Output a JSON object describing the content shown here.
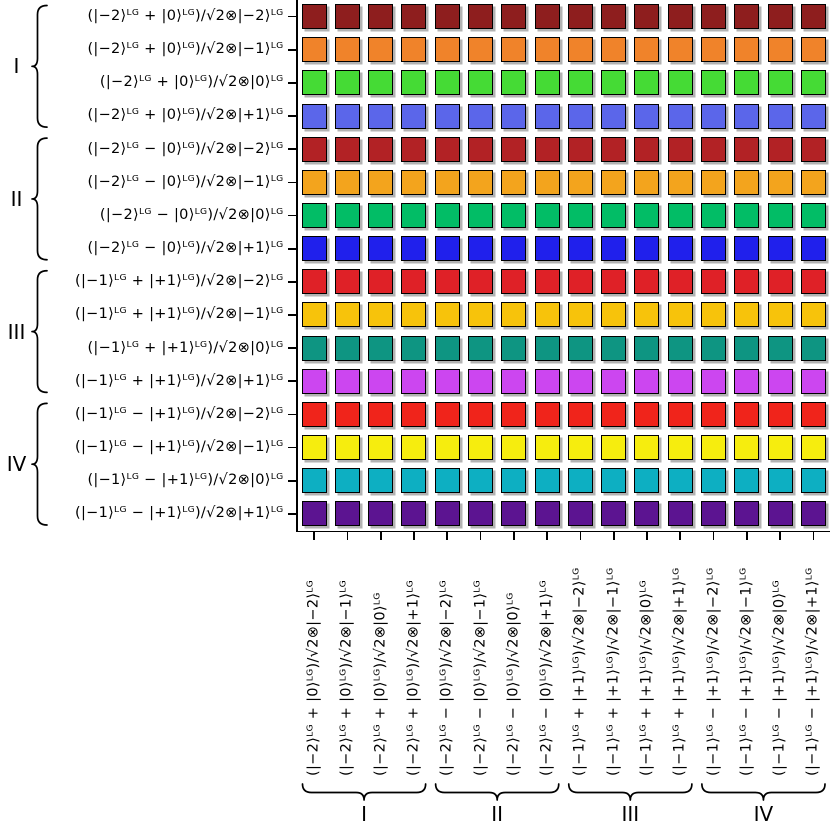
{
  "figure": {
    "background": "#ffffff",
    "axis_color": "#000000",
    "text_color": "#000000",
    "cell_border_color": "#000000",
    "cell_shadow_color": "#b3b3b3"
  },
  "chart_data": {
    "type": "heatmap",
    "title": "",
    "cell_rule": "every cell in a row shares that row's color",
    "legend": false,
    "grid": false,
    "rows": [
      "(|−2⟩ᴸᴳ + |0⟩ᴸᴳ)/√2⊗|−2⟩ᴸᴳ",
      "(|−2⟩ᴸᴳ + |0⟩ᴸᴳ)/√2⊗|−1⟩ᴸᴳ",
      "(|−2⟩ᴸᴳ + |0⟩ᴸᴳ)/√2⊗|0⟩ᴸᴳ",
      "(|−2⟩ᴸᴳ + |0⟩ᴸᴳ)/√2⊗|+1⟩ᴸᴳ",
      "(|−2⟩ᴸᴳ − |0⟩ᴸᴳ)/√2⊗|−2⟩ᴸᴳ",
      "(|−2⟩ᴸᴳ − |0⟩ᴸᴳ)/√2⊗|−1⟩ᴸᴳ",
      "(|−2⟩ᴸᴳ − |0⟩ᴸᴳ)/√2⊗|0⟩ᴸᴳ",
      "(|−2⟩ᴸᴳ − |0⟩ᴸᴳ)/√2⊗|+1⟩ᴸᴳ",
      "(|−1⟩ᴸᴳ + |+1⟩ᴸᴳ)/√2⊗|−2⟩ᴸᴳ",
      "(|−1⟩ᴸᴳ + |+1⟩ᴸᴳ)/√2⊗|−1⟩ᴸᴳ",
      "(|−1⟩ᴸᴳ + |+1⟩ᴸᴳ)/√2⊗|0⟩ᴸᴳ",
      "(|−1⟩ᴸᴳ + |+1⟩ᴸᴳ)/√2⊗|+1⟩ᴸᴳ",
      "(|−1⟩ᴸᴳ − |+1⟩ᴸᴳ)/√2⊗|−2⟩ᴸᴳ",
      "(|−1⟩ᴸᴳ − |+1⟩ᴸᴳ)/√2⊗|−1⟩ᴸᴳ",
      "(|−1⟩ᴸᴳ − |+1⟩ᴸᴳ)/√2⊗|0⟩ᴸᴳ",
      "(|−1⟩ᴸᴳ − |+1⟩ᴸᴳ)/√2⊗|+1⟩ᴸᴳ"
    ],
    "columns": [
      "(|−2⟩ᴸᴳ + |0⟩ᴸᴳ)/√2⊗|−2⟩ᴸᴳ",
      "(|−2⟩ᴸᴳ + |0⟩ᴸᴳ)/√2⊗|−1⟩ᴸᴳ",
      "(|−2⟩ᴸᴳ + |0⟩ᴸᴳ)/√2⊗|0⟩ᴸᴳ",
      "(|−2⟩ᴸᴳ + |0⟩ᴸᴳ)/√2⊗|+1⟩ᴸᴳ",
      "(|−2⟩ᴸᴳ − |0⟩ᴸᴳ)/√2⊗|−2⟩ᴸᴳ",
      "(|−2⟩ᴸᴳ − |0⟩ᴸᴳ)/√2⊗|−1⟩ᴸᴳ",
      "(|−2⟩ᴸᴳ − |0⟩ᴸᴳ)/√2⊗|0⟩ᴸᴳ",
      "(|−2⟩ᴸᴳ − |0⟩ᴸᴳ)/√2⊗|+1⟩ᴸᴳ",
      "(|−1⟩ᴸᴳ + |+1⟩ᴸᴳ)/√2⊗|−2⟩ᴸᴳ",
      "(|−1⟩ᴸᴳ + |+1⟩ᴸᴳ)/√2⊗|−1⟩ᴸᴳ",
      "(|−1⟩ᴸᴳ + |+1⟩ᴸᴳ)/√2⊗|0⟩ᴸᴳ",
      "(|−1⟩ᴸᴳ + |+1⟩ᴸᴳ)/√2⊗|+1⟩ᴸᴳ",
      "(|−1⟩ᴸᴳ − |+1⟩ᴸᴳ)/√2⊗|−2⟩ᴸᴳ",
      "(|−1⟩ᴸᴳ − |+1⟩ᴸᴳ)/√2⊗|−1⟩ᴸᴳ",
      "(|−1⟩ᴸᴳ − |+1⟩ᴸᴳ)/√2⊗|0⟩ᴸᴳ",
      "(|−1⟩ᴸᴳ − |+1⟩ᴸᴳ)/√2⊗|+1⟩ᴸᴳ"
    ],
    "row_colors": [
      "#8E1E1E",
      "#F0832A",
      "#45DB35",
      "#5B66EA",
      "#B22225",
      "#F3A41D",
      "#02BD66",
      "#2020EC",
      "#DF2127",
      "#F7C30B",
      "#0E9582",
      "#CC46F0",
      "#F0241B",
      "#F6ED0E",
      "#0DAFC2",
      "#5C1491"
    ],
    "row_groups": [
      {
        "numeral": "I",
        "start": 0,
        "end": 3
      },
      {
        "numeral": "II",
        "start": 4,
        "end": 7
      },
      {
        "numeral": "III",
        "start": 8,
        "end": 11
      },
      {
        "numeral": "IV",
        "start": 12,
        "end": 15
      }
    ],
    "col_groups": [
      {
        "numeral": "I",
        "start": 0,
        "end": 3
      },
      {
        "numeral": "II",
        "start": 4,
        "end": 7
      },
      {
        "numeral": "III",
        "start": 8,
        "end": 11
      },
      {
        "numeral": "IV",
        "start": 12,
        "end": 15
      }
    ]
  }
}
